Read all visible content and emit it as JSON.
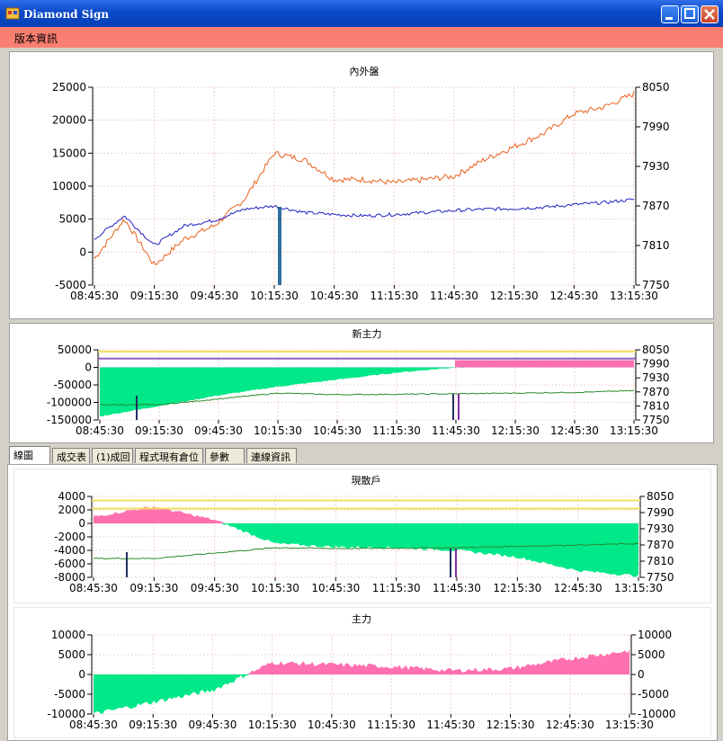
{
  "window": {
    "title": "Diamond Sign",
    "icon": "app-icon"
  },
  "menu": {
    "items": [
      "版本資訊"
    ]
  },
  "x_labels": [
    "08:45:30",
    "09:15:30",
    "09:45:30",
    "10:15:30",
    "10:45:30",
    "11:15:30",
    "11:45:30",
    "12:15:30",
    "12:45:30",
    "13:15:30"
  ],
  "tabs": [
    "線圖",
    "成交表",
    "(1)成回",
    "程式現有倉位",
    "參數",
    "連線資訊"
  ],
  "active_tab": "線圖",
  "charts": {
    "c1": {
      "title": "內外盤",
      "left_ticks": [
        "25000",
        "20000",
        "15000",
        "10000",
        "5000",
        "0",
        "-5000"
      ],
      "right_ticks": [
        "8050",
        "7990",
        "7930",
        "7870",
        "7810",
        "7750"
      ]
    },
    "c2": {
      "title": "新主力",
      "left_ticks": [
        "50000",
        "0",
        "-50000",
        "-100000",
        "-150000"
      ],
      "right_ticks": [
        "8050",
        "7990",
        "7930",
        "7870",
        "7810",
        "7750"
      ]
    },
    "c3": {
      "title": "現散戶",
      "left_ticks": [
        "4000",
        "2000",
        "0",
        "-2000",
        "-4000",
        "-6000",
        "-8000"
      ],
      "right_ticks": [
        "8050",
        "7990",
        "7930",
        "7870",
        "7810",
        "7750"
      ]
    },
    "c4": {
      "title": "主力",
      "left_ticks": [
        "10000",
        "5000",
        "0",
        "-5000",
        "-10000"
      ],
      "right_ticks": [
        "10000",
        "5000",
        "0",
        "-5000",
        "-10000"
      ]
    }
  },
  "chart_data": [
    {
      "type": "line",
      "title": "內外盤",
      "x": [
        "08:45:30",
        "09:00:30",
        "09:15:30",
        "09:30:30",
        "09:45:30",
        "10:00:30",
        "10:15:30",
        "10:30:30",
        "10:45:30",
        "11:00:30",
        "11:15:30",
        "11:30:30",
        "11:45:30",
        "12:00:30",
        "12:15:30",
        "12:30:30",
        "12:45:30",
        "13:00:30",
        "13:15:30"
      ],
      "series": [
        {
          "values": [
            -1000,
            5000,
            -2000,
            2000,
            4000,
            8000,
            15000,
            14000,
            11000,
            11000,
            10500,
            11000,
            11500,
            14000,
            16000,
            18000,
            21000,
            22000,
            24000
          ],
          "color": "#e8601c",
          "axis": "left"
        },
        {
          "values": [
            7820,
            7855,
            7810,
            7840,
            7848,
            7865,
            7870,
            7860,
            7857,
            7855,
            7857,
            7860,
            7863,
            7865,
            7866,
            7868,
            7872,
            7875,
            7880
          ],
          "color": "#2020c0",
          "axis": "right"
        }
      ],
      "ylim": [
        -5000,
        25000
      ],
      "y2lim": [
        7750,
        8050
      ]
    },
    {
      "type": "area",
      "title": "新主力",
      "x": [
        "08:45:30",
        "09:15:30",
        "09:45:30",
        "10:15:30",
        "10:45:30",
        "11:15:30",
        "11:45:30",
        "12:15:30",
        "12:45:30",
        "13:15:30"
      ],
      "series": [
        {
          "values": [
            -140000,
            -110000,
            -80000,
            -55000,
            -35000,
            -15000,
            0,
            5000,
            10000,
            15000
          ],
          "axis": "left"
        },
        {
          "values": [
            7815,
            7815,
            7840,
            7865,
            7858,
            7860,
            7862,
            7865,
            7868,
            7875
          ],
          "axis": "right"
        }
      ],
      "ylim": [
        -150000,
        50000
      ],
      "y2lim": [
        7750,
        8050
      ]
    },
    {
      "type": "area",
      "title": "現散戶",
      "x": [
        "08:45:30",
        "09:15:30",
        "09:45:30",
        "10:15:30",
        "10:45:30",
        "11:15:30",
        "11:45:30",
        "12:15:30",
        "12:45:30",
        "13:15:30"
      ],
      "series": [
        {
          "values": [
            1000,
            2500,
            500,
            -3000,
            -3500,
            -3600,
            -4000,
            -5000,
            -7000,
            -7800
          ],
          "axis": "left"
        },
        {
          "values": [
            7820,
            7820,
            7840,
            7860,
            7857,
            7858,
            7860,
            7865,
            7870,
            7875
          ],
          "axis": "right"
        }
      ],
      "ylim": [
        -8000,
        4000
      ],
      "y2lim": [
        7750,
        8050
      ]
    },
    {
      "type": "area",
      "title": "主力",
      "x": [
        "08:45:30",
        "09:15:30",
        "09:45:30",
        "10:15:30",
        "10:45:30",
        "11:15:30",
        "11:45:30",
        "12:15:30",
        "12:45:30",
        "13:15:30"
      ],
      "series": [
        {
          "values": [
            -10000,
            -7000,
            -4000,
            3000,
            2500,
            2000,
            1000,
            1500,
            4000,
            6000
          ],
          "axis": "left"
        }
      ],
      "ylim": [
        -10000,
        10000
      ],
      "y2lim": [
        -10000,
        10000
      ]
    }
  ]
}
